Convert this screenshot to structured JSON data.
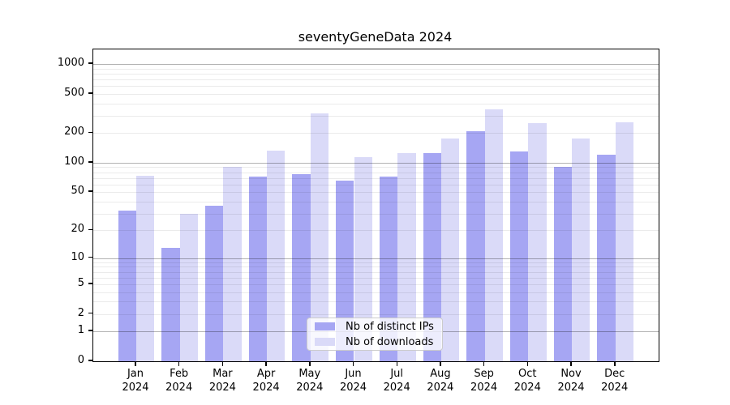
{
  "chart_data": {
    "type": "bar",
    "title": "seventyGeneData 2024",
    "categories": [
      "Jan",
      "Feb",
      "Mar",
      "Apr",
      "May",
      "Jun",
      "Jul",
      "Aug",
      "Sep",
      "Oct",
      "Nov",
      "Dec"
    ],
    "category_year": "2024",
    "series": [
      {
        "name": "Nb of distinct IPs",
        "color": "#a6a6f3",
        "values": [
          32,
          13,
          36,
          72,
          76,
          66,
          72,
          125,
          208,
          130,
          91,
          120
        ]
      },
      {
        "name": "Nb of downloads",
        "color": "#dadaf8",
        "values": [
          74,
          30,
          90,
          132,
          315,
          115,
          125,
          176,
          348,
          252,
          176,
          256
        ]
      }
    ],
    "yscale": "log1p",
    "y_tick_labels": [
      1000,
      500,
      200,
      100,
      50,
      20,
      10,
      5,
      2,
      1,
      0
    ],
    "y_major_gridlines": [
      1,
      10,
      100,
      1000
    ],
    "axis_top_value": 1405,
    "ylim": [
      0,
      1405
    ],
    "grid": true,
    "legend_position": "lower center"
  },
  "colors": {
    "major_grid": "rgba(0,0,0,0.30)",
    "minor_grid": "rgba(0,0,0,0.08)",
    "spine": "#000000",
    "legend_border": "#cccccc",
    "legend_background": "rgba(255,255,255,0.8)"
  }
}
